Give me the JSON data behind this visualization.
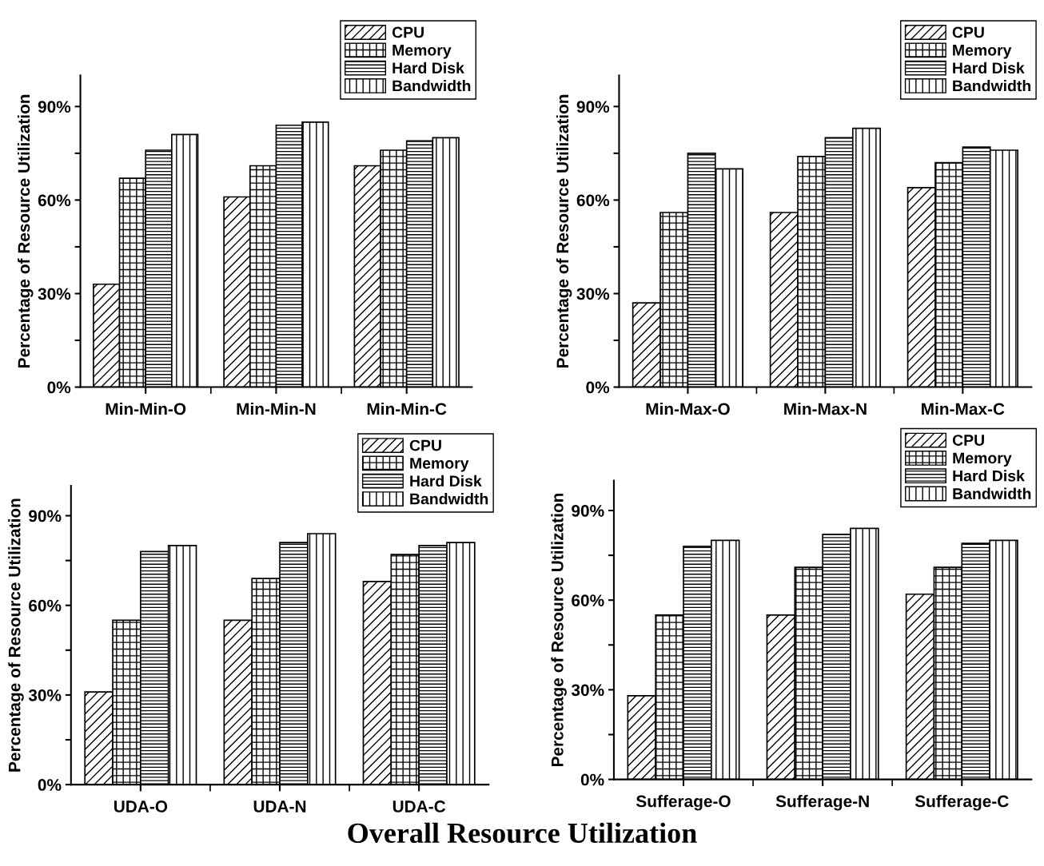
{
  "chart_data": [
    {
      "type": "bar",
      "ylabel": "Percentage of Resource Utilization",
      "categories": [
        "Min-Min-O",
        "Min-Min-N",
        "Min-Min-C"
      ],
      "ylim": [
        0,
        100
      ],
      "yticks": [
        {
          "value": 0,
          "label": "0%"
        },
        {
          "value": 15,
          "label": null
        },
        {
          "value": 30,
          "label": "30%"
        },
        {
          "value": 45,
          "label": null
        },
        {
          "value": 60,
          "label": "60%"
        },
        {
          "value": 75,
          "label": null
        },
        {
          "value": 90,
          "label": "90%"
        }
      ],
      "legend": "top right",
      "grid": false,
      "series": [
        {
          "name": "CPU",
          "color": "#000000",
          "values": [
            33,
            61,
            71
          ]
        },
        {
          "name": "Memory",
          "color": "#000000",
          "values": [
            67,
            71,
            76
          ]
        },
        {
          "name": "Hard Disk",
          "color": "#000000",
          "values": [
            76,
            84,
            79
          ]
        },
        {
          "name": "Bandwidth",
          "color": "#000000",
          "values": [
            81,
            85,
            80
          ]
        }
      ]
    },
    {
      "type": "bar",
      "ylabel": "Percentage of Resource Utilization",
      "categories": [
        "Min-Max-O",
        "Min-Max-N",
        "Min-Max-C"
      ],
      "ylim": [
        0,
        100
      ],
      "yticks": [
        {
          "value": 0,
          "label": "0%"
        },
        {
          "value": 15,
          "label": null
        },
        {
          "value": 30,
          "label": "30%"
        },
        {
          "value": 45,
          "label": null
        },
        {
          "value": 60,
          "label": "60%"
        },
        {
          "value": 75,
          "label": null
        },
        {
          "value": 90,
          "label": "90%"
        }
      ],
      "legend": "top right",
      "grid": false,
      "series": [
        {
          "name": "CPU",
          "color": "#000000",
          "values": [
            27,
            56,
            64
          ]
        },
        {
          "name": "Memory",
          "color": "#000000",
          "values": [
            56,
            74,
            72
          ]
        },
        {
          "name": "Hard Disk",
          "color": "#000000",
          "values": [
            75,
            80,
            77
          ]
        },
        {
          "name": "Bandwidth",
          "color": "#000000",
          "values": [
            70,
            83,
            76
          ]
        }
      ]
    },
    {
      "type": "bar",
      "ylabel": "Percentage of Resource Utilization",
      "categories": [
        "UDA-O",
        "UDA-N",
        "UDA-C"
      ],
      "ylim": [
        0,
        100
      ],
      "yticks": [
        {
          "value": 0,
          "label": "0%"
        },
        {
          "value": 15,
          "label": null
        },
        {
          "value": 30,
          "label": "30%"
        },
        {
          "value": 45,
          "label": null
        },
        {
          "value": 60,
          "label": "60%"
        },
        {
          "value": 75,
          "label": null
        },
        {
          "value": 90,
          "label": "90%"
        }
      ],
      "legend": "top right",
      "grid": false,
      "series": [
        {
          "name": "CPU",
          "color": "#000000",
          "values": [
            31,
            55,
            68
          ]
        },
        {
          "name": "Memory",
          "color": "#000000",
          "values": [
            55,
            69,
            77
          ]
        },
        {
          "name": "Hard Disk",
          "color": "#000000",
          "values": [
            78,
            81,
            80
          ]
        },
        {
          "name": "Bandwidth",
          "color": "#000000",
          "values": [
            80,
            84,
            81
          ]
        }
      ]
    },
    {
      "type": "bar",
      "ylabel": "Percentage of Resource Utilization",
      "categories": [
        "Sufferage-O",
        "Sufferage-N",
        "Sufferage-C"
      ],
      "ylim": [
        0,
        100
      ],
      "yticks": [
        {
          "value": 0,
          "label": "0%"
        },
        {
          "value": 15,
          "label": null
        },
        {
          "value": 30,
          "label": "30%"
        },
        {
          "value": 45,
          "label": null
        },
        {
          "value": 60,
          "label": "60%"
        },
        {
          "value": 75,
          "label": null
        },
        {
          "value": 90,
          "label": "90%"
        }
      ],
      "legend": "top right",
      "grid": false,
      "annotations": [
        "Overall Resource Utilization"
      ],
      "series": [
        {
          "name": "CPU",
          "color": "#000000",
          "values": [
            28,
            55,
            62
          ]
        },
        {
          "name": "Memory",
          "color": "#000000",
          "values": [
            55,
            71,
            71
          ]
        },
        {
          "name": "Hard Disk",
          "color": "#000000",
          "values": [
            78,
            82,
            79
          ]
        },
        {
          "name": "Bandwidth",
          "color": "#000000",
          "values": [
            80,
            84,
            80
          ]
        }
      ]
    }
  ]
}
